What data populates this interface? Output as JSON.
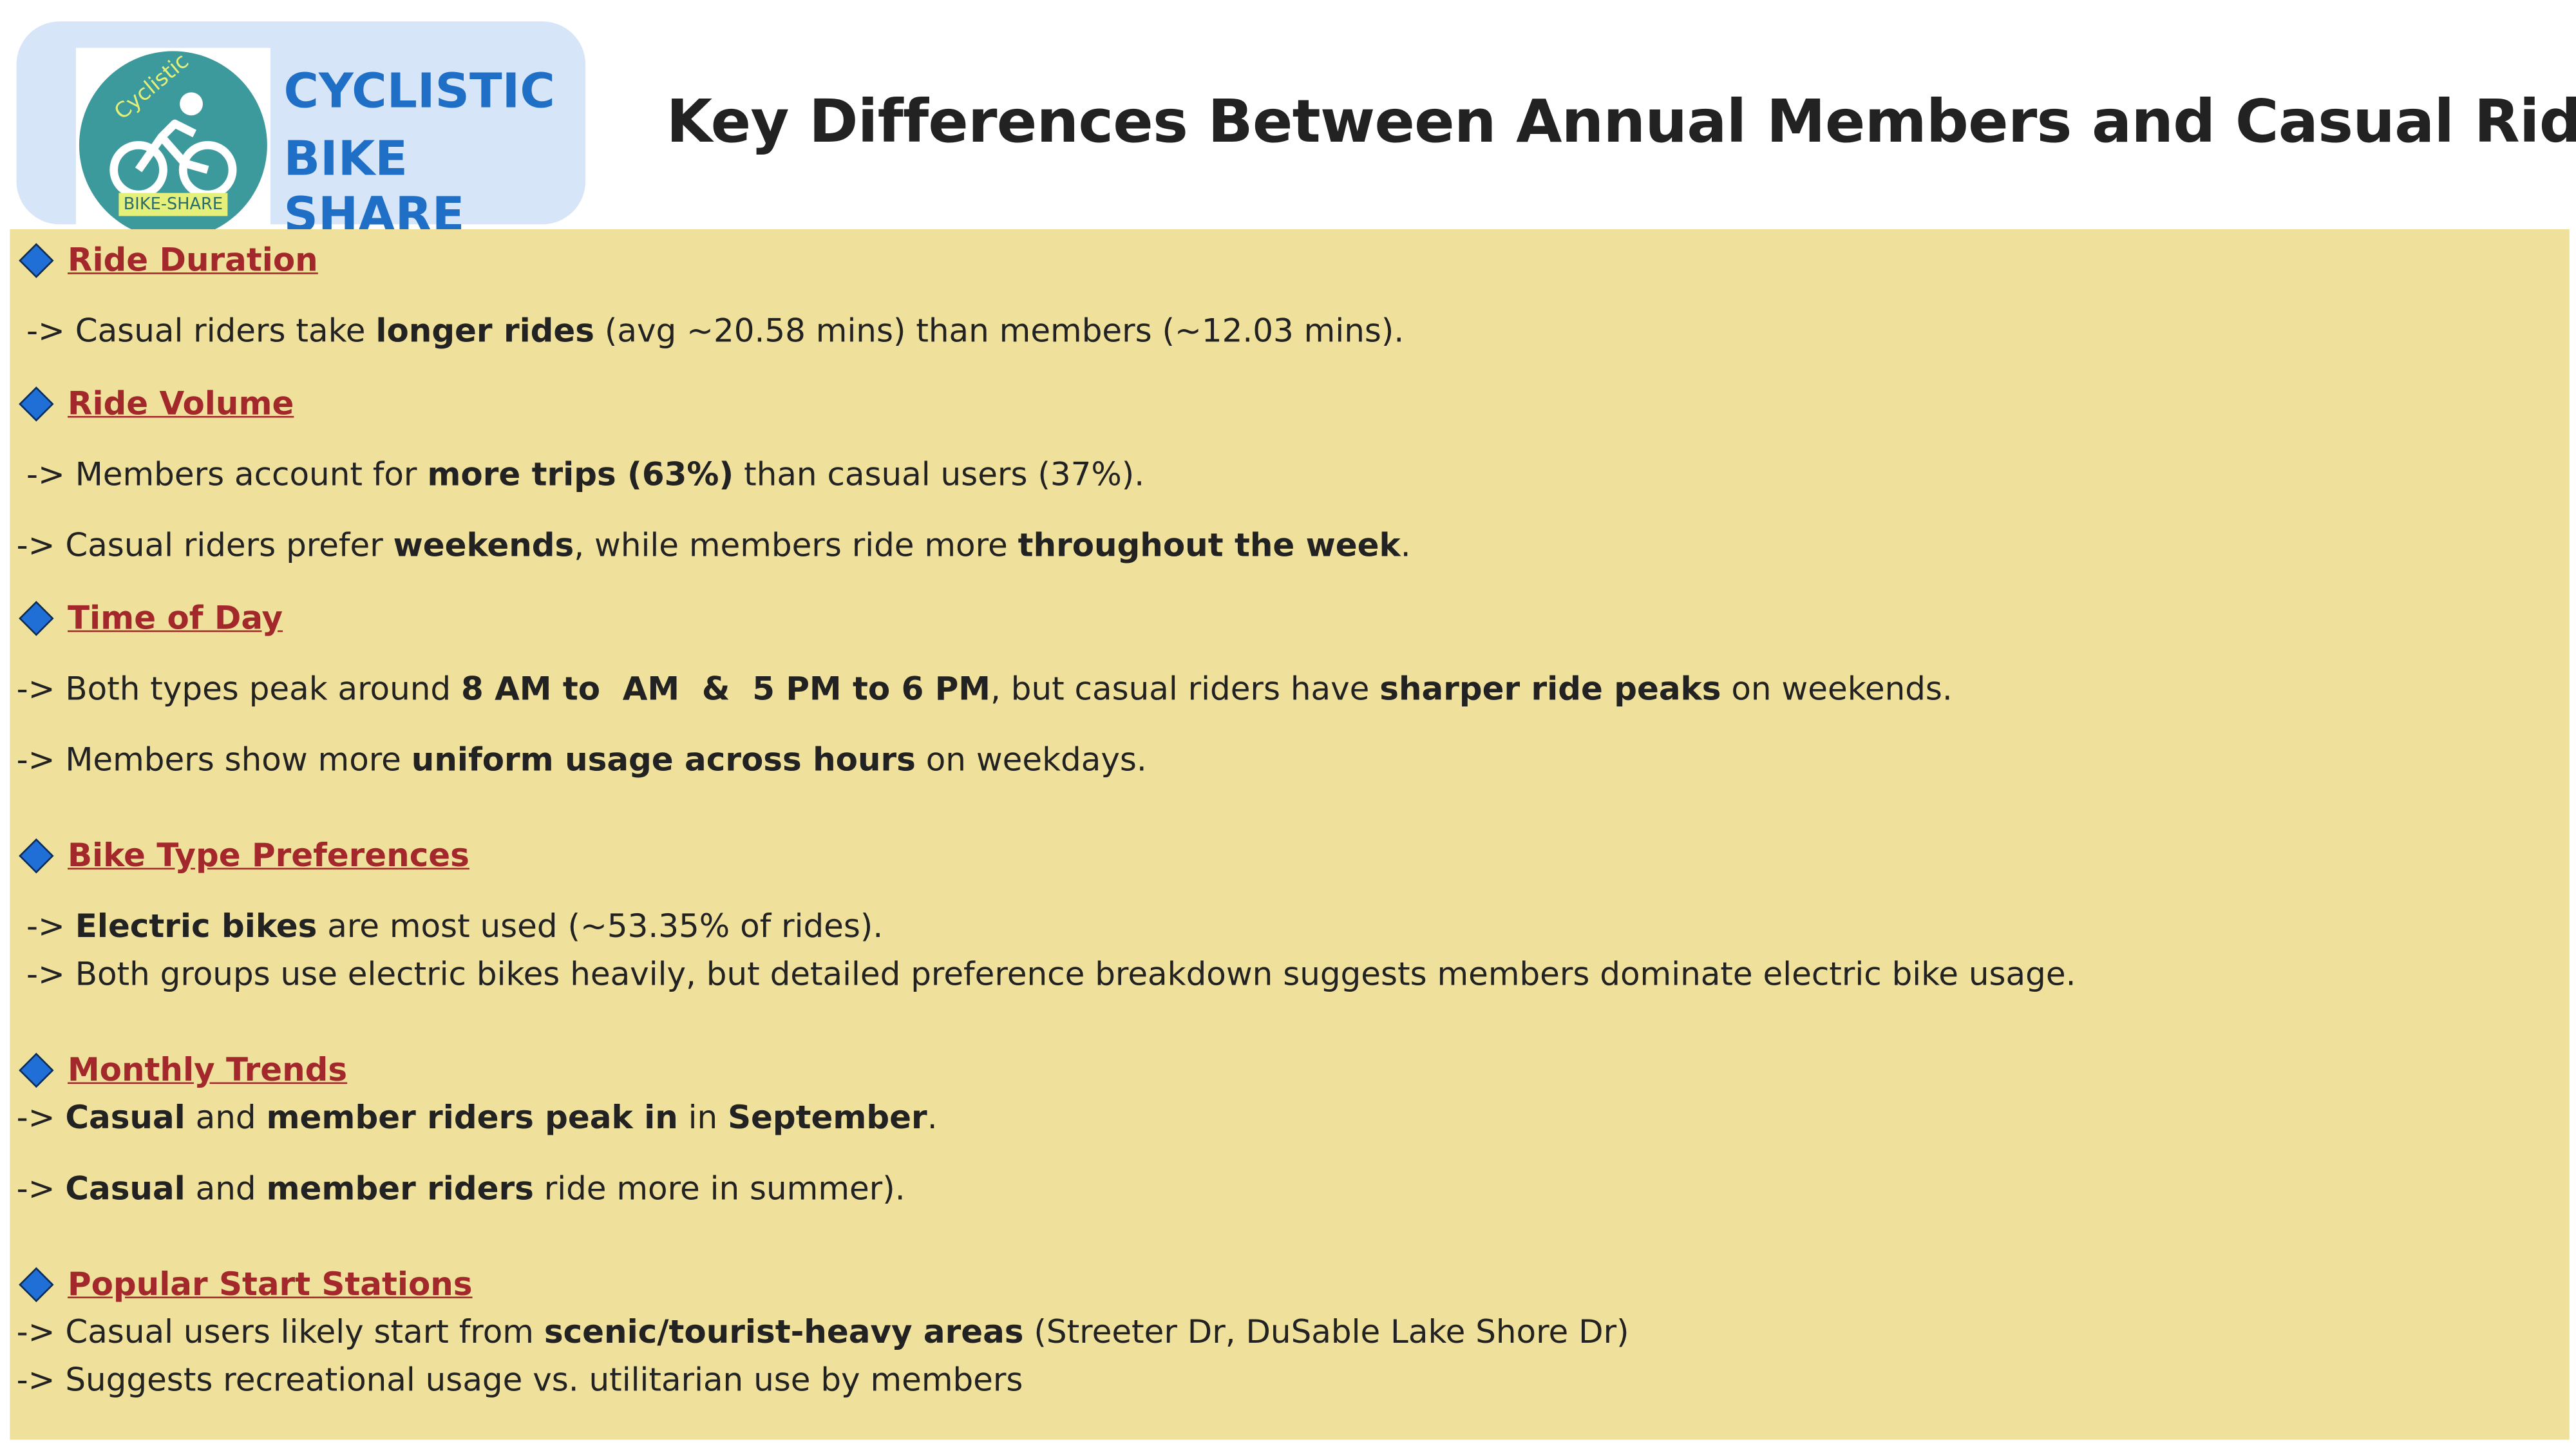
{
  "header": {
    "logo": {
      "ring_text": "Cyclistic",
      "badge": "BIKE-SHARE",
      "name_line_1": "CYCLISTIC",
      "name_line_2": "BIKE SHARE"
    },
    "title": "Key Differences Between Annual Members and Casual Riders"
  },
  "sections": [
    {
      "heading": "Ride Duration",
      "lines": [
        [
          "-> Casual riders take ",
          {
            "text": "longer rides",
            "bold": true
          },
          " (avg ~20.58 mins) than members (~12.03 mins)."
        ]
      ]
    },
    {
      "heading": "Ride Volume",
      "lines": [
        [
          "-> Members account for ",
          {
            "text": "more trips (63%)",
            "bold": true
          },
          " than casual users (37%)."
        ],
        [
          "-> Casual riders prefer ",
          {
            "text": "weekends",
            "bold": true
          },
          ", while members ride more ",
          {
            "text": "throughout the week",
            "bold": true
          },
          "."
        ]
      ]
    },
    {
      "heading": "Time of Day",
      "lines": [
        [
          "-> Both types peak around ",
          {
            "text": "8 AM to  AM  &  5 PM to 6 PM",
            "bold": true
          },
          ", but casual riders have ",
          {
            "text": "sharper ride peaks",
            "bold": true
          },
          " on weekends."
        ],
        [
          "-> Members show more ",
          {
            "text": "uniform usage across hours",
            "bold": true
          },
          " on weekdays."
        ]
      ]
    },
    {
      "heading": "Bike Type Preferences",
      "lines": [
        [
          "-> ",
          {
            "text": "Electric bikes",
            "bold": true
          },
          " are most used (~53.35% of rides)."
        ],
        [
          "-> Both groups use electric bikes heavily, but detailed preference breakdown suggests members dominate electric bike usage."
        ]
      ]
    },
    {
      "heading": "Monthly Trends",
      "lines": [
        [
          "-> ",
          {
            "text": "Casual",
            "bold": true
          },
          " and ",
          {
            "text": "member riders peak in",
            "bold": true
          },
          " in ",
          {
            "text": "September",
            "bold": true
          },
          "."
        ],
        [
          "-> ",
          {
            "text": "Casual",
            "bold": true
          },
          " and ",
          {
            "text": "member riders",
            "bold": true
          },
          " ride more in summer)."
        ]
      ]
    },
    {
      "heading": "Popular Start Stations",
      "lines": [
        [
          "-> Casual users likely start from ",
          {
            "text": "scenic/tourist-heavy areas",
            "bold": true
          },
          " (Streeter Dr, DuSable Lake Shore Dr)"
        ],
        [
          "-> Suggests recreational usage vs. utilitarian use by members"
        ]
      ]
    }
  ]
}
